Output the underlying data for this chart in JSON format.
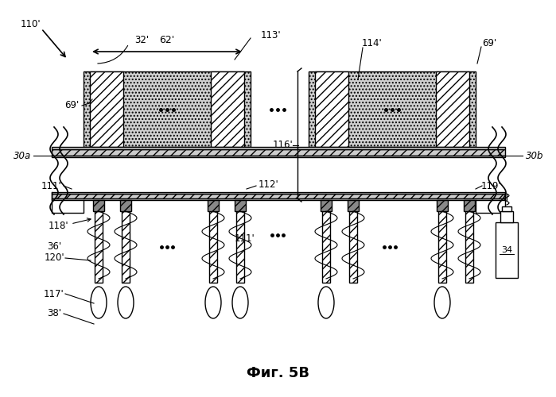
{
  "title": "Фиг. 5В",
  "bg": "#ffffff",
  "lc": "#000000",
  "labels": {
    "110p": "110'",
    "32p": "32'",
    "62p": "62'",
    "113p": "113'",
    "114p": "114'",
    "69p_l": "69'",
    "69p_r": "69'",
    "30a": "30a",
    "30b": "30b",
    "111p_l": "111'",
    "111p_c": "111'",
    "112p": "112'",
    "116p": "116'",
    "119p": "119'",
    "118p": "118'",
    "36p": "36'",
    "120p": "120'",
    "117p": "117'",
    "38p": "38'",
    "34": "34"
  }
}
